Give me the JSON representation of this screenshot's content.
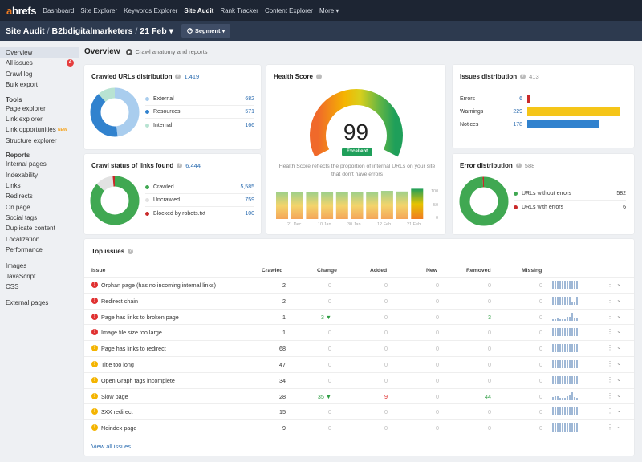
{
  "nav": {
    "logo_a": "a",
    "logo_rest": "hrefs",
    "items": [
      "Dashboard",
      "Site Explorer",
      "Keywords Explorer",
      "Site Audit",
      "Rank Tracker",
      "Content Explorer",
      "More ▾"
    ],
    "active_index": 3
  },
  "header": {
    "crumb1": "Site Audit",
    "crumb2": "B2bdigitalmarketers",
    "crumb3": "21 Feb ▾",
    "segment_label": "Segment ▾"
  },
  "sidebar": {
    "top": [
      {
        "label": "Overview",
        "active": true
      },
      {
        "label": "All issues",
        "badge": "4"
      },
      {
        "label": "Crawl log"
      },
      {
        "label": "Bulk export"
      }
    ],
    "tools_head": "Tools",
    "tools": [
      "Page explorer",
      "Link explorer",
      "Link opportunities",
      "Structure explorer"
    ],
    "new_tag": "NEW",
    "reports_head": "Reports",
    "reports": [
      "Internal pages",
      "Indexability",
      "Links",
      "Redirects",
      "On page",
      "Social tags",
      "Duplicate content",
      "Localization",
      "Performance"
    ],
    "resources": [
      "Images",
      "JavaScript",
      "CSS"
    ],
    "external": [
      "External pages"
    ]
  },
  "main": {
    "title": "Overview",
    "subtitle": "Crawl anatomy and reports"
  },
  "crawled": {
    "title": "Crawled URLs distribution",
    "count": "1,419",
    "legend": [
      {
        "label": "External",
        "value": "682",
        "color": "#a9cdee"
      },
      {
        "label": "Resources",
        "value": "571",
        "color": "#3182ce"
      },
      {
        "label": "Internal",
        "value": "166",
        "color": "#b8e3d2"
      }
    ],
    "values": [
      682,
      571,
      166
    ]
  },
  "crawl_status": {
    "title": "Crawl status of links found",
    "count": "6,444",
    "legend": [
      {
        "label": "Crawled",
        "value": "5,585",
        "color": "#40a852"
      },
      {
        "label": "Uncrawled",
        "value": "759",
        "color": "#e2e2e2"
      },
      {
        "label": "Blocked by robots.txt",
        "value": "100",
        "color": "#c92a2a"
      }
    ],
    "values": [
      5585,
      759,
      100
    ]
  },
  "health": {
    "title": "Health Score",
    "score": "99",
    "badge": "Excellent",
    "description": "Health Score reflects the proportion of internal URLs on your site that don't have errors",
    "history": [
      88,
      88,
      88,
      87,
      88,
      88,
      88,
      92,
      90,
      99
    ],
    "x_labels": [
      "21 Dec",
      "10 Jan",
      "30 Jan",
      "12 Feb",
      "21 Feb"
    ],
    "y_labels": [
      "100",
      "50",
      "0"
    ]
  },
  "issues_dist": {
    "title": "Issues distribution",
    "count": "413",
    "rows": [
      {
        "label": "Errors",
        "value": "6",
        "color": "#c92a2a",
        "n": 6
      },
      {
        "label": "Warnings",
        "value": "229",
        "color": "#f5c518",
        "n": 229
      },
      {
        "label": "Notices",
        "value": "178",
        "color": "#3182ce",
        "n": 178
      }
    ]
  },
  "error_dist": {
    "title": "Error distribution",
    "count": "588",
    "legend": [
      {
        "label": "URLs without errors",
        "value": "582",
        "color": "#40a852"
      },
      {
        "label": "URLs with errors",
        "value": "6",
        "color": "#c92a2a"
      }
    ],
    "values": [
      582,
      6
    ]
  },
  "top_issues": {
    "title": "Top issues",
    "headers": [
      "Issue",
      "Crawled",
      "Change",
      "Added",
      "New",
      "Removed",
      "Missing"
    ],
    "rows": [
      {
        "type": "error",
        "name": "Orphan page (has no incoming internal links)",
        "crawled": "2",
        "change": "0",
        "added": "0",
        "new": "0",
        "removed": "0",
        "missing": "0"
      },
      {
        "type": "error",
        "name": "Redirect chain",
        "crawled": "2",
        "change": "0",
        "added": "0",
        "new": "0",
        "removed": "0",
        "missing": "0"
      },
      {
        "type": "error",
        "name": "Page has links to broken page",
        "crawled": "1",
        "change": "3 ▼",
        "change_color": "green",
        "added": "0",
        "new": "0",
        "removed": "3",
        "removed_color": "green",
        "missing": "0"
      },
      {
        "type": "error",
        "name": "Image file size too large",
        "crawled": "1",
        "change": "0",
        "added": "0",
        "new": "0",
        "removed": "0",
        "missing": "0"
      },
      {
        "type": "warning",
        "name": "Page has links to redirect",
        "crawled": "68",
        "change": "0",
        "added": "0",
        "new": "0",
        "removed": "0",
        "missing": "0"
      },
      {
        "type": "warning",
        "name": "Title too long",
        "crawled": "47",
        "change": "0",
        "added": "0",
        "new": "0",
        "removed": "0",
        "missing": "0"
      },
      {
        "type": "warning",
        "name": "Open Graph tags incomplete",
        "crawled": "34",
        "change": "0",
        "added": "0",
        "new": "0",
        "removed": "0",
        "missing": "0"
      },
      {
        "type": "warning",
        "name": "Slow page",
        "crawled": "28",
        "change": "35 ▼",
        "change_color": "green",
        "added": "9",
        "added_color": "red",
        "new": "0",
        "removed": "44",
        "removed_color": "green",
        "missing": "0"
      },
      {
        "type": "warning",
        "name": "3XX redirect",
        "crawled": "15",
        "change": "0",
        "added": "0",
        "new": "0",
        "removed": "0",
        "missing": "0"
      },
      {
        "type": "warning",
        "name": "Noindex page",
        "crawled": "9",
        "change": "0",
        "added": "0",
        "new": "0",
        "removed": "0",
        "missing": "0"
      }
    ],
    "view_all": "View all issues"
  }
}
